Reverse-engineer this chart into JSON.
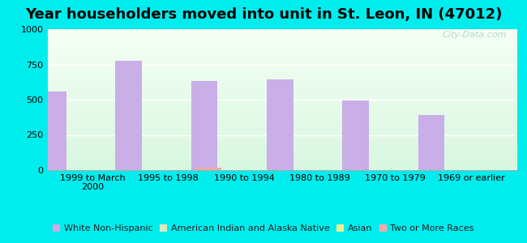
{
  "title": "Year householders moved into unit in St. Leon, IN (47012)",
  "categories": [
    "1999 to March\n2000",
    "1995 to 1998",
    "1990 to 1994",
    "1980 to 1989",
    "1970 to 1979",
    "1969 or earlier"
  ],
  "series": {
    "White Non-Hispanic": [
      555,
      775,
      635,
      645,
      497,
      390
    ],
    "American Indian and Alaska Native": [
      0,
      0,
      0,
      0,
      0,
      0
    ],
    "Asian": [
      0,
      0,
      0,
      0,
      0,
      0
    ],
    "Two or More Races": [
      0,
      18,
      0,
      0,
      0,
      0
    ]
  },
  "colors": {
    "White Non-Hispanic": "#c9aee8",
    "American Indian and Alaska Native": "#d8eac0",
    "Asian": "#eeee99",
    "Two or More Races": "#f0aaaa"
  },
  "legend_colors": {
    "White Non-Hispanic": "#d4a8e8",
    "American Indian and Alaska Native": "#d8eac0",
    "Asian": "#f0f090",
    "Two or More Races": "#f5aaaa"
  },
  "ylim": [
    0,
    1000
  ],
  "yticks": [
    0,
    250,
    500,
    750,
    1000
  ],
  "background_color": "#00eded",
  "title_fontsize": 13,
  "tick_fontsize": 8,
  "legend_fontsize": 8,
  "bar_width": 0.35,
  "watermark": "City-Data.com"
}
